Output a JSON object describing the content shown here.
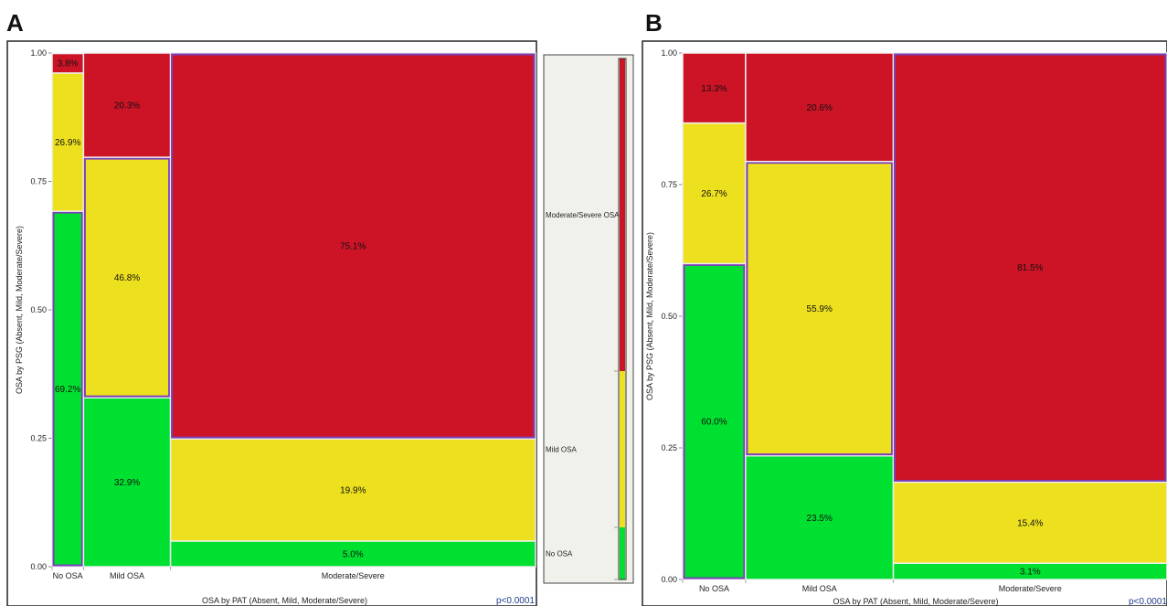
{
  "panel_labels": [
    "A",
    "B"
  ],
  "colors": {
    "no_osa": "#00e030",
    "mild": "#ede01e",
    "moderate_severe": "#cc1426",
    "highlight": "#7a3fb8",
    "cell_border": "#f0f0f0",
    "legend_bg": "#f1f1ec",
    "p_value": "#1f3a8a"
  },
  "legend": {
    "entries": [
      {
        "label": "Moderate/Severe OSA",
        "color": "#cc1426",
        "frac": 0.6
      },
      {
        "label": "Mild OSA",
        "color": "#ede01e",
        "frac": 0.3
      },
      {
        "label": "No OSA",
        "color": "#00e030",
        "frac": 0.1
      }
    ]
  },
  "chart_data": [
    {
      "type": "mosaic",
      "panel": "A",
      "xlabel": "OSA by PAT (Absent, Mild, Moderate/Severe)",
      "ylabel": "OSA by PSG (Absent, Mild, Moderate/Severe)",
      "yticks": [
        "0.00",
        "0.25",
        "0.50",
        "0.75",
        "1.00"
      ],
      "ylim": [
        0,
        1
      ],
      "p_value": "p<0.0001",
      "categories": [
        "No OSA",
        "Mild OSA",
        "Moderate/Severe"
      ],
      "column_widths": [
        0.065,
        0.18,
        0.755
      ],
      "series": [
        {
          "name": "No OSA",
          "values": [
            69.2,
            32.9,
            5.0
          ]
        },
        {
          "name": "Mild OSA",
          "values": [
            26.9,
            46.8,
            19.9
          ]
        },
        {
          "name": "Moderate/Severe OSA",
          "values": [
            3.8,
            20.3,
            75.1
          ]
        }
      ],
      "labels": [
        [
          "69.2%",
          "26.9%",
          "3.8%"
        ],
        [
          "32.9%",
          "46.8%",
          "20.3%"
        ],
        [
          "5.0%",
          "19.9%",
          "75.1%"
        ]
      ],
      "highlighted": [
        [
          0,
          0
        ],
        [
          1,
          1
        ],
        [
          2,
          2
        ]
      ]
    },
    {
      "type": "mosaic",
      "panel": "B",
      "xlabel": "OSA by PAT (Absent, Mild, Moderate/Severe)",
      "ylabel": "OSA by PSG (Absent, Mild, Moderate/Severe)",
      "yticks": [
        "0.00",
        "0.25",
        "0.50",
        "0.75",
        "1.00"
      ],
      "ylim": [
        0,
        1
      ],
      "p_value": "p<0.0001",
      "categories": [
        "No OSA",
        "Mild OSA",
        "Moderate/Severe"
      ],
      "column_widths": [
        0.13,
        0.305,
        0.565
      ],
      "series": [
        {
          "name": "No OSA",
          "values": [
            60.0,
            23.5,
            3.1
          ]
        },
        {
          "name": "Mild OSA",
          "values": [
            26.7,
            55.9,
            15.4
          ]
        },
        {
          "name": "Moderate/Severe OSA",
          "values": [
            13.3,
            20.6,
            81.5
          ]
        }
      ],
      "labels": [
        [
          "60.0%",
          "26.7%",
          "13.3%"
        ],
        [
          "23.5%",
          "55.9%",
          "20.6%"
        ],
        [
          "3.1%",
          "15.4%",
          "81.5%"
        ]
      ],
      "highlighted": [
        [
          0,
          0
        ],
        [
          1,
          1
        ],
        [
          2,
          2
        ]
      ]
    }
  ]
}
